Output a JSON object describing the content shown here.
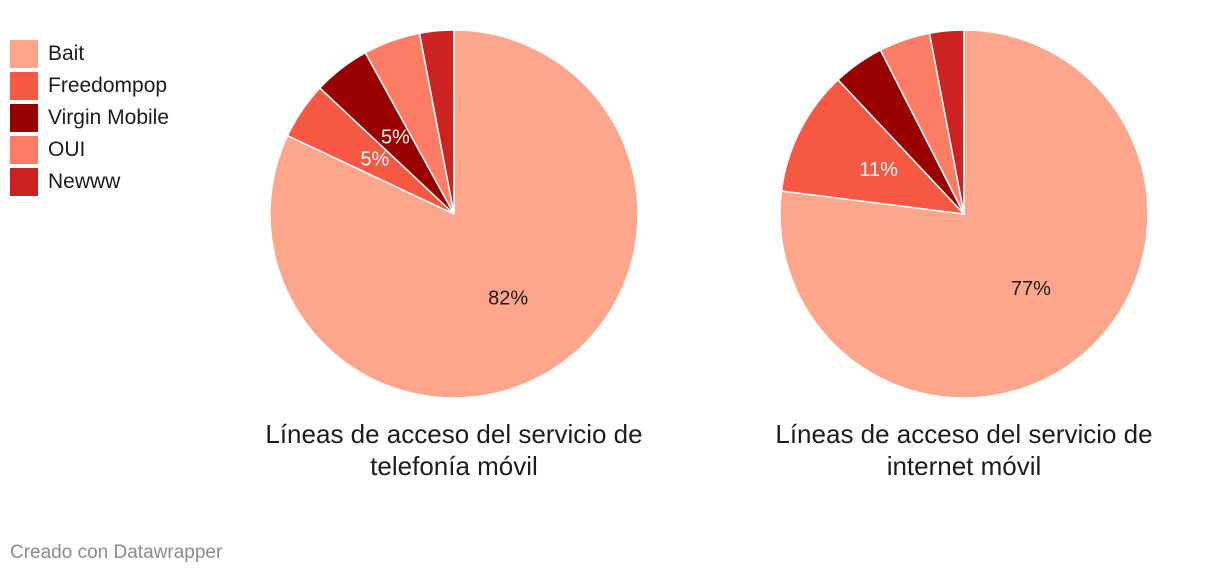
{
  "legend": [
    {
      "label": "Bait",
      "color": "#fda68b"
    },
    {
      "label": "Freedompop",
      "color": "#f65844"
    },
    {
      "label": "Virgin Mobile",
      "color": "#990000"
    },
    {
      "label": "OUI",
      "color": "#fc7c65"
    },
    {
      "label": "Newww",
      "color": "#cc2222"
    }
  ],
  "chart_data": [
    {
      "type": "pie",
      "title": "Líneas de acceso del servicio de telefonía móvil",
      "title_lines": [
        "Líneas de acceso del servicio de",
        "telefonía móvil"
      ],
      "categories": [
        "Bait",
        "Freedompop",
        "Virgin Mobile",
        "OUI",
        "Newww"
      ],
      "values": [
        82,
        5,
        5,
        5,
        3
      ],
      "labels": [
        "82%",
        "5%",
        "5%",
        "",
        ""
      ],
      "label_colors": [
        "#1d1d1d",
        "#ffffff",
        "#ffffff",
        "",
        ""
      ]
    },
    {
      "type": "pie",
      "title": "Líneas de acceso del servicio de internet móvil",
      "title_lines": [
        "Líneas de acceso del servicio de",
        "internet móvil"
      ],
      "categories": [
        "Bait",
        "Freedompop",
        "Virgin Mobile",
        "OUI",
        "Newww"
      ],
      "values": [
        77,
        11,
        4.5,
        4.5,
        3
      ],
      "labels": [
        "77%",
        "11%",
        "",
        "",
        ""
      ],
      "label_colors": [
        "#1d1d1d",
        "#ffffff",
        "",
        "",
        ""
      ]
    }
  ],
  "footer": "Creado con Datawrapper"
}
